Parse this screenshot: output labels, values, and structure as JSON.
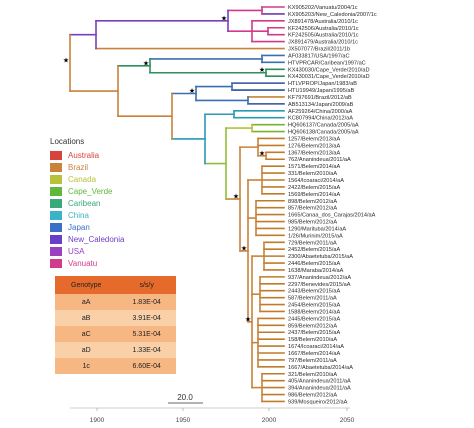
{
  "tips": [
    {
      "label": "KX905202/Vanuatu/2004/1c",
      "color": "#d23a8a"
    },
    {
      "label": "KX905203/New_Caledonia/2007/1c",
      "color": "#6a3fb0"
    },
    {
      "label": "JX891478/Australia/2010/1c",
      "color": "#d23a8a"
    },
    {
      "label": "KF242506/Australia/2010/1c",
      "color": "#d23a8a"
    },
    {
      "label": "KF242505/Australia/2010/1c",
      "color": "#d23a8a"
    },
    {
      "label": "JX891479/Australia/2010/1c",
      "color": "#d23a8a"
    },
    {
      "label": "JX507077/Brazil/2011/1b",
      "color": "#c07a2a"
    },
    {
      "label": "AF033817/USA/1997/aC",
      "color": "#3a6fb0"
    },
    {
      "label": "HTVPRCAR/Caribean/1997/aC",
      "color": "#3a6fb0"
    },
    {
      "label": "KX430030/Cape_Verde/2010/aD",
      "color": "#2e8f5a"
    },
    {
      "label": "KX430031/Cape_Verde/2010/aD",
      "color": "#2e8f5a"
    },
    {
      "label": "HTLVPROP/Japan/1983/aB",
      "color": "#2f4d9c"
    },
    {
      "label": "HTU19949/Japan/1995/aB",
      "color": "#2f4d9c"
    },
    {
      "label": "KF797691/Brazil/2012/aB",
      "color": "#c07a2a"
    },
    {
      "label": "AB513134/Japan/2009/aB",
      "color": "#2f4d9c"
    },
    {
      "label": "AF259264/China/2000/aA",
      "color": "#2a9ab5"
    },
    {
      "label": "KC807994/China/2012/aA",
      "color": "#2a9ab5"
    },
    {
      "label": "HQ606137/Canada/2005/aA",
      "color": "#7ab02e"
    },
    {
      "label": "HQ606138/Canada/2005/aA",
      "color": "#7ab02e"
    },
    {
      "label": "1257/Belem/2013/aA",
      "color": "#c07a2a"
    },
    {
      "label": "1276/Belem/2013/aA",
      "color": "#c07a2a"
    },
    {
      "label": "1367/Belem/2013/aA",
      "color": "#c07a2a"
    },
    {
      "label": "762/Ananindeua/2011/aA",
      "color": "#c07a2a"
    },
    {
      "label": "1571/Belem/2014/aA",
      "color": "#c07a2a"
    },
    {
      "label": "331/Belem/2010/aA",
      "color": "#c07a2a"
    },
    {
      "label": "1564/Icoaraci/2014/aA",
      "color": "#c07a2a"
    },
    {
      "label": "2422/Belem/2015/aA",
      "color": "#c07a2a"
    },
    {
      "label": "1569/Belem/2014/aA",
      "color": "#c07a2a"
    },
    {
      "label": "898/Belem/2012/aA",
      "color": "#c07a2a"
    },
    {
      "label": "857/Belem/2012/aA",
      "color": "#c07a2a"
    },
    {
      "label": "1665/Canaa_dos_Carajas/2014/aA",
      "color": "#c07a2a"
    },
    {
      "label": "985/Belem/2012/aA",
      "color": "#c07a2a"
    },
    {
      "label": "1290/Marituba/2014/aA",
      "color": "#c07a2a"
    },
    {
      "label": "1/26/Murinim/2015/aA",
      "color": "#c07a2a"
    },
    {
      "label": "729/Belem/2011/aA",
      "color": "#c07a2a"
    },
    {
      "label": "2452/Belem/2015/aA",
      "color": "#c07a2a"
    },
    {
      "label": "2300/Abaetetuba/2015/aA",
      "color": "#c07a2a"
    },
    {
      "label": "2446/Belem/2015/aA",
      "color": "#c07a2a"
    },
    {
      "label": "1638/Maraba/2014/aA",
      "color": "#c07a2a"
    },
    {
      "label": "937/Ananindeua/2012/aA",
      "color": "#c07a2a"
    },
    {
      "label": "2297/Benevides/2015/aA",
      "color": "#c07a2a"
    },
    {
      "label": "2443/Belem/2015/aA",
      "color": "#c07a2a"
    },
    {
      "label": "587/Belem/2011/aA",
      "color": "#c07a2a"
    },
    {
      "label": "2454/Belem/2015/aA",
      "color": "#c07a2a"
    },
    {
      "label": "1588/Belem/2014/aA",
      "color": "#c07a2a"
    },
    {
      "label": "2445/Belem/2015/aA",
      "color": "#c07a2a"
    },
    {
      "label": "859/Belem/2012/aA",
      "color": "#c07a2a"
    },
    {
      "label": "2437/Belem/2015/aA",
      "color": "#c07a2a"
    },
    {
      "label": "158/Belem/2010/aA",
      "color": "#c07a2a"
    },
    {
      "label": "1674/Icoaraci/2014/aA",
      "color": "#c07a2a"
    },
    {
      "label": "1667/Belem/2014/aA",
      "color": "#c07a2a"
    },
    {
      "label": "797/Belem/2011/aA",
      "color": "#c07a2a"
    },
    {
      "label": "1667/Abaetetuba/2014/aA",
      "color": "#c07a2a"
    },
    {
      "label": "321/Belem/2010/aA",
      "color": "#c07a2a"
    },
    {
      "label": "405/Ananindeua/2011/aA",
      "color": "#c07a2a"
    },
    {
      "label": "394/Ananindeua/2011/aA",
      "color": "#c07a2a"
    },
    {
      "label": "986/Belem/2012/aA",
      "color": "#c07a2a"
    },
    {
      "label": "939/Mosqueiro/2012/aA",
      "color": "#c07a2a"
    }
  ],
  "axis": {
    "ticks": [
      "1900",
      "1950",
      "2000",
      "2050"
    ]
  },
  "scale_bar": {
    "label": "20.0"
  },
  "legend": {
    "title": "Locations",
    "items": [
      {
        "label": "Australia",
        "color": "#d6453d"
      },
      {
        "label": "Brazil",
        "color": "#c8823a"
      },
      {
        "label": "Canada",
        "color": "#b7c23a"
      },
      {
        "label": "Cape_Verde",
        "color": "#5fb83a"
      },
      {
        "label": "Caribean",
        "color": "#3aa87a"
      },
      {
        "label": "China",
        "color": "#3ab3c8"
      },
      {
        "label": "Japan",
        "color": "#3a6fc8"
      },
      {
        "label": "New_Caledonia",
        "color": "#6a3fc8"
      },
      {
        "label": "USA",
        "color": "#9a3fc0"
      },
      {
        "label": "Vanuatu",
        "color": "#d23a8a"
      }
    ]
  },
  "genotype_table": {
    "headers": [
      "Genotype",
      "s/s/y"
    ],
    "rows": [
      {
        "genotype": "aA",
        "rate": "1.83E-04"
      },
      {
        "genotype": "aB",
        "rate": "3.91E-04"
      },
      {
        "genotype": "aC",
        "rate": "5.31E-04"
      },
      {
        "genotype": "aD",
        "rate": "1.33E-04"
      },
      {
        "genotype": "1c",
        "rate": "6.60E-04"
      }
    ]
  }
}
